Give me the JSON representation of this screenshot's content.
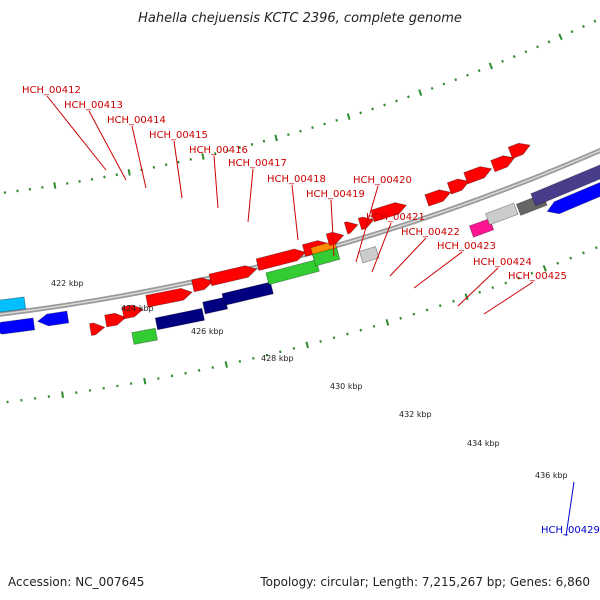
{
  "title": "Hahella chejuensis KCTC 2396, complete genome",
  "footer": {
    "accession": "Accession: NC_007645",
    "summary": "Topology: circular; Length: 7,215,267 bp; Genes: 6,860"
  },
  "colors": {
    "forward_label": "#cc0000",
    "reverse_label": "#0000cc",
    "backbone": "#9a9a9a",
    "tick_dots": "#2e8b2e",
    "red": "#ff0000",
    "green": "#33cc33",
    "navy": "#000080",
    "blue": "#0000ff",
    "cyan": "#00bfff",
    "orange": "#ff8c00",
    "lightgray": "#cccccc",
    "darkgray": "#666666",
    "magenta": "#ff1493",
    "slate": "#483d8b"
  },
  "scale_ticks": [
    "422 kbp",
    "424 kbp",
    "426 kbp",
    "428 kbp",
    "430 kbp",
    "432 kbp",
    "434 kbp",
    "436 kbp"
  ],
  "gene_labels": [
    {
      "name": "HCH_00412",
      "strand": "forward"
    },
    {
      "name": "HCH_00413",
      "strand": "forward"
    },
    {
      "name": "HCH_00414",
      "strand": "forward"
    },
    {
      "name": "HCH_00415",
      "strand": "forward"
    },
    {
      "name": "HCH_00416",
      "strand": "forward"
    },
    {
      "name": "HCH_00417",
      "strand": "forward"
    },
    {
      "name": "HCH_00418",
      "strand": "forward"
    },
    {
      "name": "HCH_00419",
      "strand": "forward"
    },
    {
      "name": "HCH_00420",
      "strand": "forward"
    },
    {
      "name": "HCH_00421",
      "strand": "forward"
    },
    {
      "name": "HCH_00422",
      "strand": "forward"
    },
    {
      "name": "HCH_00423",
      "strand": "forward"
    },
    {
      "name": "HCH_00424",
      "strand": "forward"
    },
    {
      "name": "HCH_00425",
      "strand": "forward"
    },
    {
      "name": "HCH_00429",
      "strand": "reverse"
    }
  ],
  "features": [
    {
      "color": "red",
      "direction": "forward"
    },
    {
      "color": "red",
      "direction": "forward"
    },
    {
      "color": "red",
      "direction": "forward"
    },
    {
      "color": "green",
      "direction": "none"
    },
    {
      "color": "navy",
      "direction": "none"
    },
    {
      "color": "red",
      "direction": "forward"
    },
    {
      "color": "navy",
      "direction": "none"
    },
    {
      "color": "red",
      "direction": "forward"
    },
    {
      "color": "navy",
      "direction": "none"
    },
    {
      "color": "red",
      "direction": "forward"
    },
    {
      "color": "red",
      "direction": "forward"
    },
    {
      "color": "green",
      "direction": "none"
    },
    {
      "color": "red",
      "direction": "forward"
    },
    {
      "color": "orange",
      "direction": "none"
    },
    {
      "color": "green",
      "direction": "none"
    },
    {
      "color": "red",
      "direction": "forward"
    },
    {
      "color": "lightgray",
      "direction": "none"
    },
    {
      "color": "red",
      "direction": "forward"
    },
    {
      "color": "red",
      "direction": "forward"
    },
    {
      "color": "red",
      "direction": "forward"
    },
    {
      "color": "magenta",
      "direction": "none"
    },
    {
      "color": "lightgray",
      "direction": "none"
    },
    {
      "color": "darkgray",
      "direction": "none"
    },
    {
      "color": "red",
      "direction": "forward"
    },
    {
      "color": "red",
      "direction": "forward"
    },
    {
      "color": "red",
      "direction": "forward"
    },
    {
      "color": "red",
      "direction": "forward"
    },
    {
      "color": "red",
      "direction": "forward"
    },
    {
      "color": "blue",
      "direction": "reverse"
    },
    {
      "color": "cyan",
      "direction": "none"
    },
    {
      "color": "blue",
      "direction": "reverse"
    },
    {
      "color": "blue",
      "direction": "reverse"
    },
    {
      "color": "slate",
      "direction": "none"
    }
  ]
}
